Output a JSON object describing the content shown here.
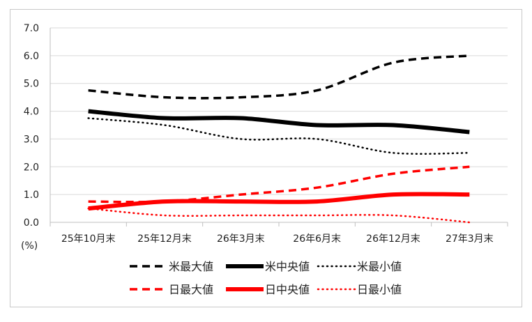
{
  "chart_data": {
    "type": "line",
    "categories": [
      "25年10月末",
      "25年12月末",
      "26年3月末",
      "26年6月末",
      "26年12月末",
      "27年3月末"
    ],
    "ylim": [
      0,
      7
    ],
    "yticks": [
      "0.0",
      "1.0",
      "2.0",
      "3.0",
      "4.0",
      "5.0",
      "6.0",
      "7.0"
    ],
    "yunit": "(%)",
    "grid": "horizontal",
    "legend_position": "bottom",
    "series": [
      {
        "name": "米最大値",
        "values": [
          4.75,
          4.5,
          4.5,
          4.75,
          5.75,
          6.0
        ],
        "color": "#000000",
        "style": "dashed"
      },
      {
        "name": "米中央値",
        "values": [
          4.0,
          3.75,
          3.75,
          3.5,
          3.5,
          3.25
        ],
        "color": "#000000",
        "style": "solid"
      },
      {
        "name": "米最小値",
        "values": [
          3.75,
          3.5,
          3.0,
          3.0,
          2.5,
          2.5
        ],
        "color": "#000000",
        "style": "dotted"
      },
      {
        "name": "日最大値",
        "values": [
          0.75,
          0.75,
          1.0,
          1.25,
          1.75,
          2.0
        ],
        "color": "#ff0000",
        "style": "dashed"
      },
      {
        "name": "日中央値",
        "values": [
          0.5,
          0.75,
          0.75,
          0.75,
          1.0,
          1.0
        ],
        "color": "#ff0000",
        "style": "solid"
      },
      {
        "name": "日最小値",
        "values": [
          0.5,
          0.25,
          0.25,
          0.25,
          0.25,
          0.0
        ],
        "color": "#ff0000",
        "style": "dotted"
      }
    ]
  }
}
